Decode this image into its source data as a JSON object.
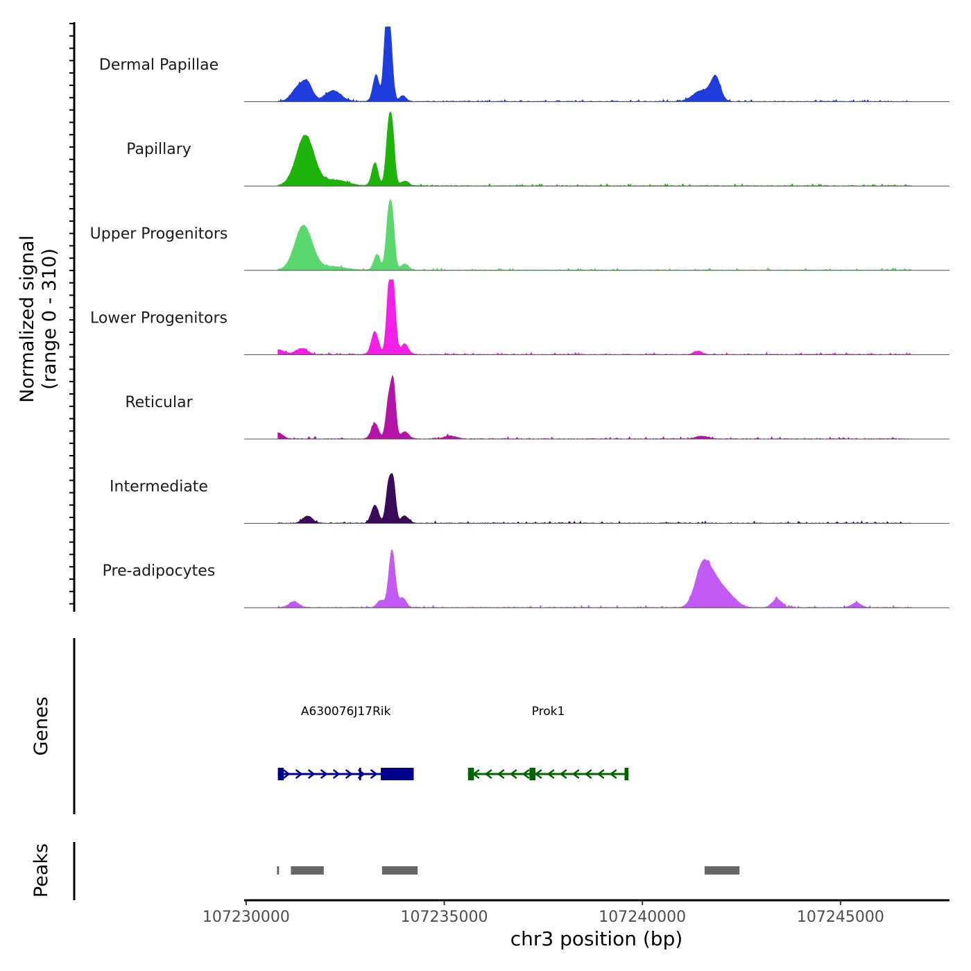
{
  "chart_data": {
    "type": "area",
    "title": "",
    "ylabel": "Normalized signal\n(range 0 - 310)",
    "ylabel_lines": [
      "Normalized signal",
      "(range 0 - 310)"
    ],
    "ylim": [
      0,
      310
    ],
    "xlabel": "chr3 position (bp)",
    "xlim": [
      107229950,
      107247750
    ],
    "x_ticks": [
      107230000,
      107235000,
      107240000,
      107245000
    ],
    "x_tick_labels": [
      "107230000",
      "107235000",
      "107240000",
      "107245000"
    ],
    "series": [
      {
        "name": "Dermal Papillae",
        "color": "#1f3ddc",
        "peaks": [
          {
            "x": 107231300,
            "y": 55,
            "w": 160
          },
          {
            "x": 107231550,
            "y": 70,
            "w": 130
          },
          {
            "x": 107232200,
            "y": 45,
            "w": 200
          },
          {
            "x": 107233280,
            "y": 110,
            "w": 80
          },
          {
            "x": 107233620,
            "y": 305,
            "w": 70
          },
          {
            "x": 107233520,
            "y": 220,
            "w": 60
          },
          {
            "x": 107233950,
            "y": 25,
            "w": 80
          },
          {
            "x": 107241500,
            "y": 45,
            "w": 220
          },
          {
            "x": 107241850,
            "y": 95,
            "w": 120
          }
        ]
      },
      {
        "name": "Papillary",
        "color": "#1eb30a",
        "peaks": [
          {
            "x": 107231450,
            "y": 160,
            "w": 220
          },
          {
            "x": 107231600,
            "y": 60,
            "w": 200
          },
          {
            "x": 107232250,
            "y": 25,
            "w": 300
          },
          {
            "x": 107233250,
            "y": 95,
            "w": 80
          },
          {
            "x": 107233600,
            "y": 240,
            "w": 70
          },
          {
            "x": 107233700,
            "y": 170,
            "w": 60
          },
          {
            "x": 107234000,
            "y": 20,
            "w": 100
          }
        ]
      },
      {
        "name": "Upper Progenitors",
        "color": "#5ad86e",
        "peaks": [
          {
            "x": 107231450,
            "y": 185,
            "w": 220
          },
          {
            "x": 107232200,
            "y": 15,
            "w": 300
          },
          {
            "x": 107233300,
            "y": 65,
            "w": 80
          },
          {
            "x": 107233600,
            "y": 230,
            "w": 70
          },
          {
            "x": 107233700,
            "y": 160,
            "w": 60
          },
          {
            "x": 107234000,
            "y": 25,
            "w": 100
          }
        ]
      },
      {
        "name": "Lower Progenitors",
        "color": "#f51ee6",
        "peaks": [
          {
            "x": 107230800,
            "y": 20,
            "w": 150
          },
          {
            "x": 107231400,
            "y": 25,
            "w": 150
          },
          {
            "x": 107233250,
            "y": 95,
            "w": 90
          },
          {
            "x": 107233620,
            "y": 310,
            "w": 70
          },
          {
            "x": 107233730,
            "y": 200,
            "w": 60
          },
          {
            "x": 107234000,
            "y": 45,
            "w": 90
          },
          {
            "x": 107241400,
            "y": 15,
            "w": 100
          }
        ]
      },
      {
        "name": "Reticular",
        "color": "#b513a8",
        "peaks": [
          {
            "x": 107230800,
            "y": 25,
            "w": 120
          },
          {
            "x": 107233250,
            "y": 65,
            "w": 90
          },
          {
            "x": 107233600,
            "y": 165,
            "w": 70
          },
          {
            "x": 107233720,
            "y": 210,
            "w": 60
          },
          {
            "x": 107234000,
            "y": 30,
            "w": 100
          },
          {
            "x": 107235150,
            "y": 12,
            "w": 150
          },
          {
            "x": 107241500,
            "y": 12,
            "w": 150
          }
        ]
      },
      {
        "name": "Intermediate",
        "color": "#3a0a5a",
        "peaks": [
          {
            "x": 107231550,
            "y": 30,
            "w": 120
          },
          {
            "x": 107233250,
            "y": 75,
            "w": 90
          },
          {
            "x": 107233600,
            "y": 165,
            "w": 70
          },
          {
            "x": 107233720,
            "y": 150,
            "w": 60
          },
          {
            "x": 107234000,
            "y": 30,
            "w": 100
          }
        ]
      },
      {
        "name": "Pre-adipocytes",
        "color": "#c35af6",
        "peaks": [
          {
            "x": 107231200,
            "y": 25,
            "w": 120
          },
          {
            "x": 107233400,
            "y": 30,
            "w": 90
          },
          {
            "x": 107233680,
            "y": 240,
            "w": 80
          },
          {
            "x": 107233950,
            "y": 40,
            "w": 90
          },
          {
            "x": 107241500,
            "y": 145,
            "w": 180
          },
          {
            "x": 107241800,
            "y": 110,
            "w": 220
          },
          {
            "x": 107242200,
            "y": 40,
            "w": 200
          },
          {
            "x": 107243400,
            "y": 35,
            "w": 120
          },
          {
            "x": 107245400,
            "y": 20,
            "w": 120
          }
        ]
      }
    ],
    "genes_panel_label": "Genes",
    "genes": [
      {
        "name": "A630076J17Rik",
        "strand": "+",
        "start": 107230800,
        "end": 107234230,
        "color": "#00008b",
        "exons": [
          [
            107230800,
            107230950
          ],
          [
            107232850,
            107232900
          ],
          [
            107233400,
            107234230
          ]
        ]
      },
      {
        "name": "Prok1",
        "strand": "-",
        "start": 107235600,
        "end": 107239650,
        "color": "#006400",
        "exons": [
          [
            107235600,
            107235750
          ],
          [
            107237150,
            107237300
          ],
          [
            107239550,
            107239650
          ]
        ]
      }
    ],
    "peaks_panel_label": "Peaks",
    "peak_regions": [
      [
        107230780,
        107230830
      ],
      [
        107231130,
        107231960
      ],
      [
        107233430,
        107234330
      ],
      [
        107241570,
        107242450
      ]
    ],
    "peak_color": "#666666"
  }
}
